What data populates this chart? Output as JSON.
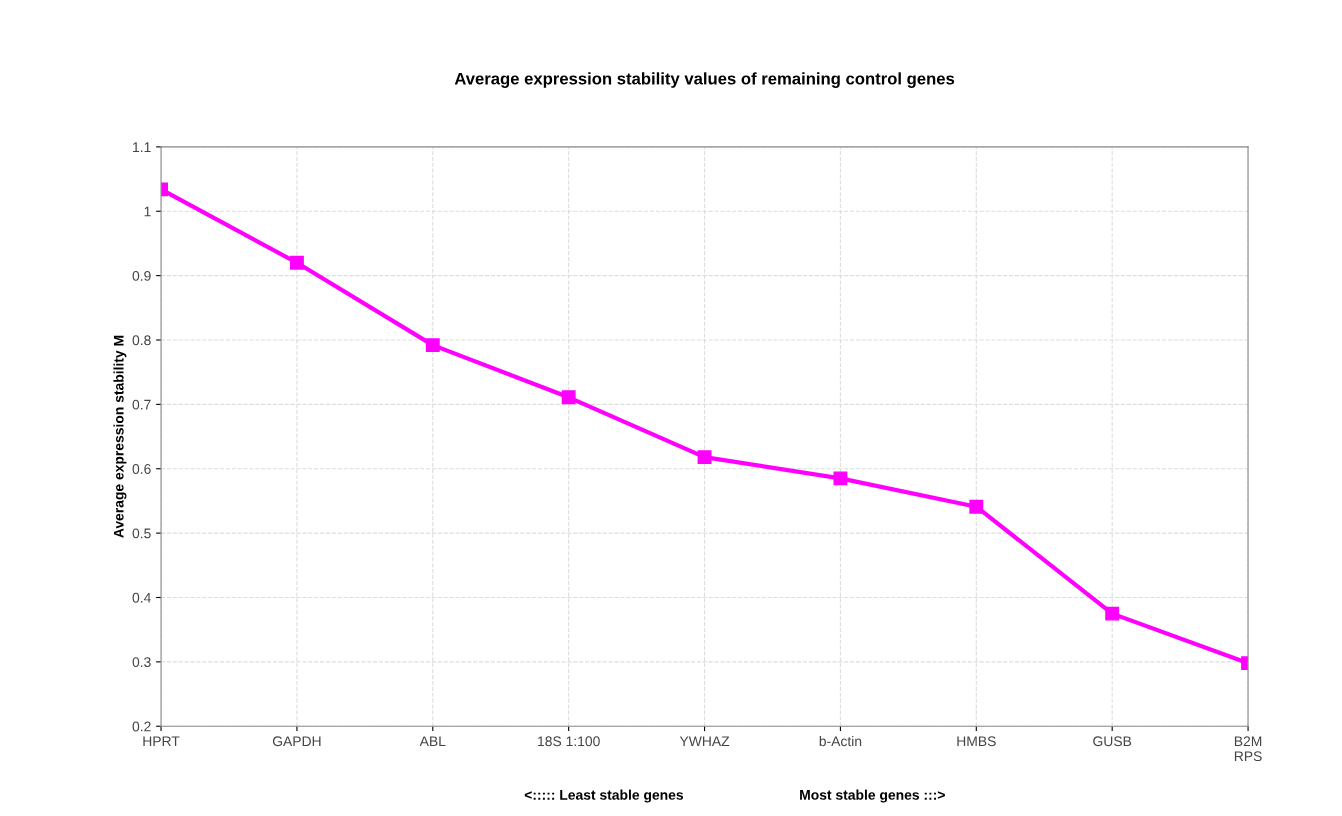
{
  "chart_data": {
    "type": "line",
    "title": "Average expression stability values of remaining control genes",
    "ylabel": "Average expression stability M",
    "categories": [
      "HPRT",
      "GAPDH",
      "ABL",
      "18S 1:100",
      "YWHAZ",
      "b-Actin",
      "HMBS",
      "GUSB",
      "B2M\nRPS"
    ],
    "series": [
      {
        "color": "#ff00ff",
        "values": [
          1.034,
          0.92,
          0.792,
          0.711,
          0.618,
          0.585,
          0.541,
          0.375,
          0.298
        ]
      }
    ],
    "ylim": [
      0.2,
      1.1
    ],
    "yticks": [
      0.2,
      0.3,
      0.4,
      0.5,
      0.6,
      0.7,
      0.8,
      0.9,
      1,
      1.1
    ],
    "grid": true,
    "marker": "square",
    "line_style": "solid",
    "annotations": [
      "<::::: Least stable genes",
      "Most stable genes :::>"
    ]
  }
}
